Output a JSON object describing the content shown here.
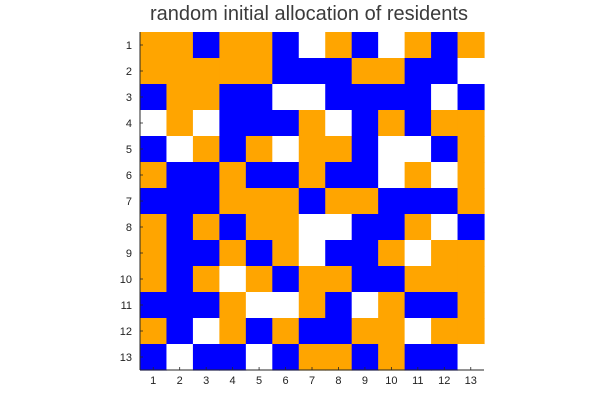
{
  "chart_data": {
    "type": "heatmap",
    "title": "random initial allocation of residents",
    "xlabel": "",
    "ylabel": "",
    "x_ticks": [
      "1",
      "2",
      "3",
      "4",
      "5",
      "6",
      "7",
      "8",
      "9",
      "10",
      "11",
      "12",
      "13"
    ],
    "y_ticks": [
      "1",
      "2",
      "3",
      "4",
      "5",
      "6",
      "7",
      "8",
      "9",
      "10",
      "11",
      "12",
      "13"
    ],
    "legend": "none",
    "grid": false,
    "categories": [
      {
        "code": "O",
        "color": "#ffa500"
      },
      {
        "code": "B",
        "color": "#0000ff"
      },
      {
        "code": "W",
        "color": "#ffffff"
      }
    ],
    "grid_values": [
      [
        "O",
        "O",
        "B",
        "O",
        "O",
        "B",
        "W",
        "O",
        "B",
        "W",
        "O",
        "B",
        "O"
      ],
      [
        "O",
        "O",
        "O",
        "O",
        "O",
        "B",
        "B",
        "B",
        "O",
        "O",
        "B",
        "B",
        "W"
      ],
      [
        "B",
        "O",
        "O",
        "B",
        "B",
        "W",
        "W",
        "B",
        "B",
        "B",
        "B",
        "W",
        "B"
      ],
      [
        "W",
        "O",
        "W",
        "B",
        "B",
        "B",
        "O",
        "W",
        "B",
        "O",
        "B",
        "O",
        "O"
      ],
      [
        "B",
        "W",
        "O",
        "B",
        "O",
        "W",
        "O",
        "O",
        "B",
        "W",
        "W",
        "B",
        "O"
      ],
      [
        "O",
        "B",
        "B",
        "O",
        "B",
        "B",
        "O",
        "B",
        "B",
        "W",
        "O",
        "W",
        "O"
      ],
      [
        "B",
        "B",
        "B",
        "O",
        "O",
        "O",
        "B",
        "O",
        "O",
        "B",
        "B",
        "B",
        "O"
      ],
      [
        "O",
        "B",
        "O",
        "B",
        "O",
        "O",
        "W",
        "W",
        "B",
        "B",
        "O",
        "W",
        "B"
      ],
      [
        "O",
        "B",
        "B",
        "O",
        "B",
        "O",
        "W",
        "B",
        "B",
        "O",
        "W",
        "O",
        "O"
      ],
      [
        "O",
        "B",
        "O",
        "W",
        "O",
        "B",
        "O",
        "O",
        "B",
        "B",
        "O",
        "O",
        "O"
      ],
      [
        "B",
        "B",
        "B",
        "O",
        "W",
        "W",
        "O",
        "B",
        "W",
        "O",
        "B",
        "B",
        "O"
      ],
      [
        "O",
        "B",
        "W",
        "O",
        "B",
        "O",
        "B",
        "B",
        "O",
        "O",
        "W",
        "O",
        "O"
      ],
      [
        "B",
        "W",
        "B",
        "B",
        "W",
        "B",
        "O",
        "O",
        "B",
        "O",
        "B",
        "B",
        "W"
      ]
    ]
  }
}
